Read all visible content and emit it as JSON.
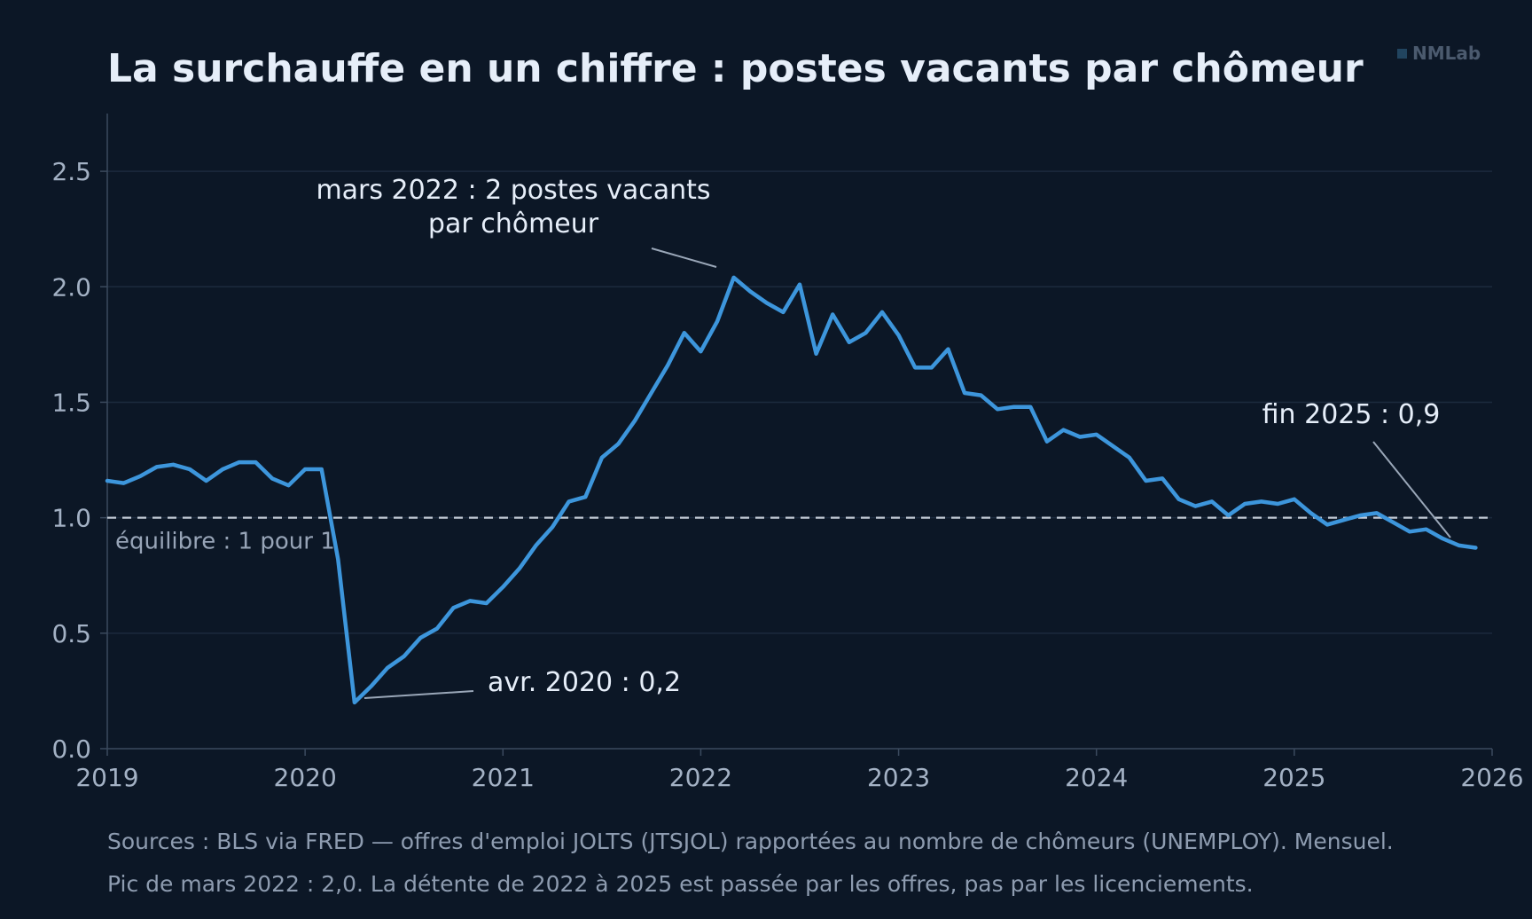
{
  "header": {
    "title": "La surchauffe en un chiffre : postes vacants par chômeur",
    "brand": "NMLab"
  },
  "footer": {
    "note1": "Sources : BLS via FRED — offres d'emploi JOLTS (JTSJOL) rapportées au nombre de chômeurs (UNEMPLOY). Mensuel.",
    "note2": "Pic de mars 2022 : 2,0. La détente de 2022 à 2025 est passée par les offres, pas par les licenciements."
  },
  "colors": {
    "background": "#0c1726",
    "line": "#3d96dc",
    "grid": "#1c2a3d",
    "axis": "#3b4a5e",
    "tick_label": "#a3b1c4",
    "annotation": "#e6eef9",
    "reference": "#c3cbd6"
  },
  "chart_data": {
    "type": "line",
    "x_start": "2019-01",
    "x_step": "month",
    "xlim": [
      2019,
      2026
    ],
    "ylim": [
      0,
      2.75
    ],
    "grid": true,
    "x_ticks": [
      "2019",
      "2020",
      "2021",
      "2022",
      "2023",
      "2024",
      "2025",
      "2026"
    ],
    "y_ticks": [
      "0.0",
      "0.5",
      "1.0",
      "1.5",
      "2.0",
      "2.5"
    ],
    "values": [
      1.16,
      1.15,
      1.18,
      1.22,
      1.23,
      1.21,
      1.16,
      1.21,
      1.24,
      1.24,
      1.17,
      1.14,
      1.21,
      1.21,
      0.82,
      0.2,
      0.27,
      0.35,
      0.4,
      0.48,
      0.52,
      0.61,
      0.64,
      0.63,
      0.7,
      0.78,
      0.88,
      0.96,
      1.07,
      1.09,
      1.26,
      1.32,
      1.42,
      1.54,
      1.66,
      1.8,
      1.72,
      1.85,
      2.04,
      1.98,
      1.93,
      1.89,
      2.01,
      1.71,
      1.88,
      1.76,
      1.8,
      1.89,
      1.79,
      1.65,
      1.65,
      1.73,
      1.54,
      1.53,
      1.47,
      1.48,
      1.48,
      1.33,
      1.38,
      1.35,
      1.36,
      1.31,
      1.26,
      1.16,
      1.17,
      1.08,
      1.05,
      1.07,
      1.01,
      1.06,
      1.07,
      1.06,
      1.08,
      1.02,
      0.97,
      0.99,
      1.01,
      1.02,
      0.98,
      0.94,
      0.95,
      0.91,
      0.88,
      0.87
    ],
    "reference_line": {
      "y": 1.0,
      "label": "équilibre : 1 pour 1"
    },
    "annotations": [
      {
        "lines": [
          "mars 2022 : 2 postes vacants",
          "par chômeur"
        ],
        "x": "2022-03",
        "y": 2.04
      },
      {
        "lines": [
          "avr. 2020 : 0,2"
        ],
        "x": "2020-04",
        "y": 0.2
      },
      {
        "lines": [
          "fin 2025 : 0,9"
        ],
        "x": "2025-12",
        "y": 0.87
      }
    ]
  }
}
